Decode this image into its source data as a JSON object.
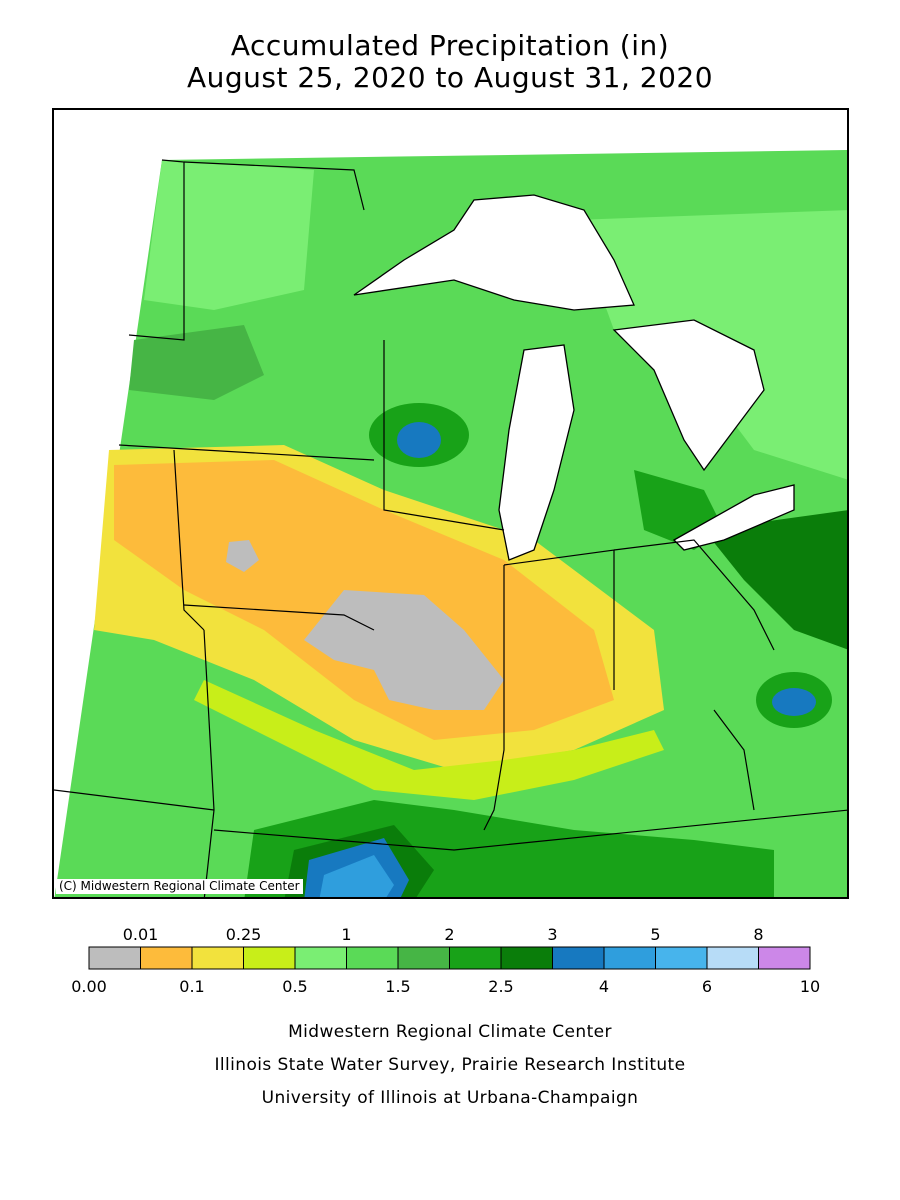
{
  "title": {
    "line1": "Accumulated Precipitation (in)",
    "line2": "August 25, 2020 to August 31, 2020"
  },
  "map": {
    "copyright": "(C) Midwestern Regional Climate Center",
    "colors": {
      "none": "#bdbdbd",
      "orange": "#fdbb3b",
      "yellow": "#f2e23d",
      "yellowgreen": "#c8ee19",
      "lightgreen": "#7aee73",
      "green": "#5ada57",
      "midgreen": "#46b545",
      "darkgreen": "#18a218",
      "forest": "#0a7d0a",
      "blue": "#1779c0",
      "midblue": "#2f9edd",
      "lightblue": "#47b4ec",
      "paleblue": "#b7dcf7",
      "purple": "#cc87e8",
      "water": "#ffffff",
      "border": "#000000"
    }
  },
  "legend": {
    "upper_labels": [
      "0.01",
      "0.25",
      "1",
      "2",
      "3",
      "5",
      "8"
    ],
    "lower_labels": [
      "0.00",
      "0.1",
      "0.5",
      "1.5",
      "2.5",
      "4",
      "6",
      "10"
    ],
    "bin_colors": [
      "#bdbdbd",
      "#fdbb3b",
      "#f2e23d",
      "#c8ee19",
      "#7aee73",
      "#5ada57",
      "#46b545",
      "#18a218",
      "#0a7d0a",
      "#1779c0",
      "#2f9edd",
      "#47b4ec",
      "#b7dcf7",
      "#cc87e8"
    ]
  },
  "credits": {
    "line1": "Midwestern Regional Climate Center",
    "line2": "Illinois State Water Survey, Prairie Research Institute",
    "line3": "University of Illinois at Urbana-Champaign"
  }
}
